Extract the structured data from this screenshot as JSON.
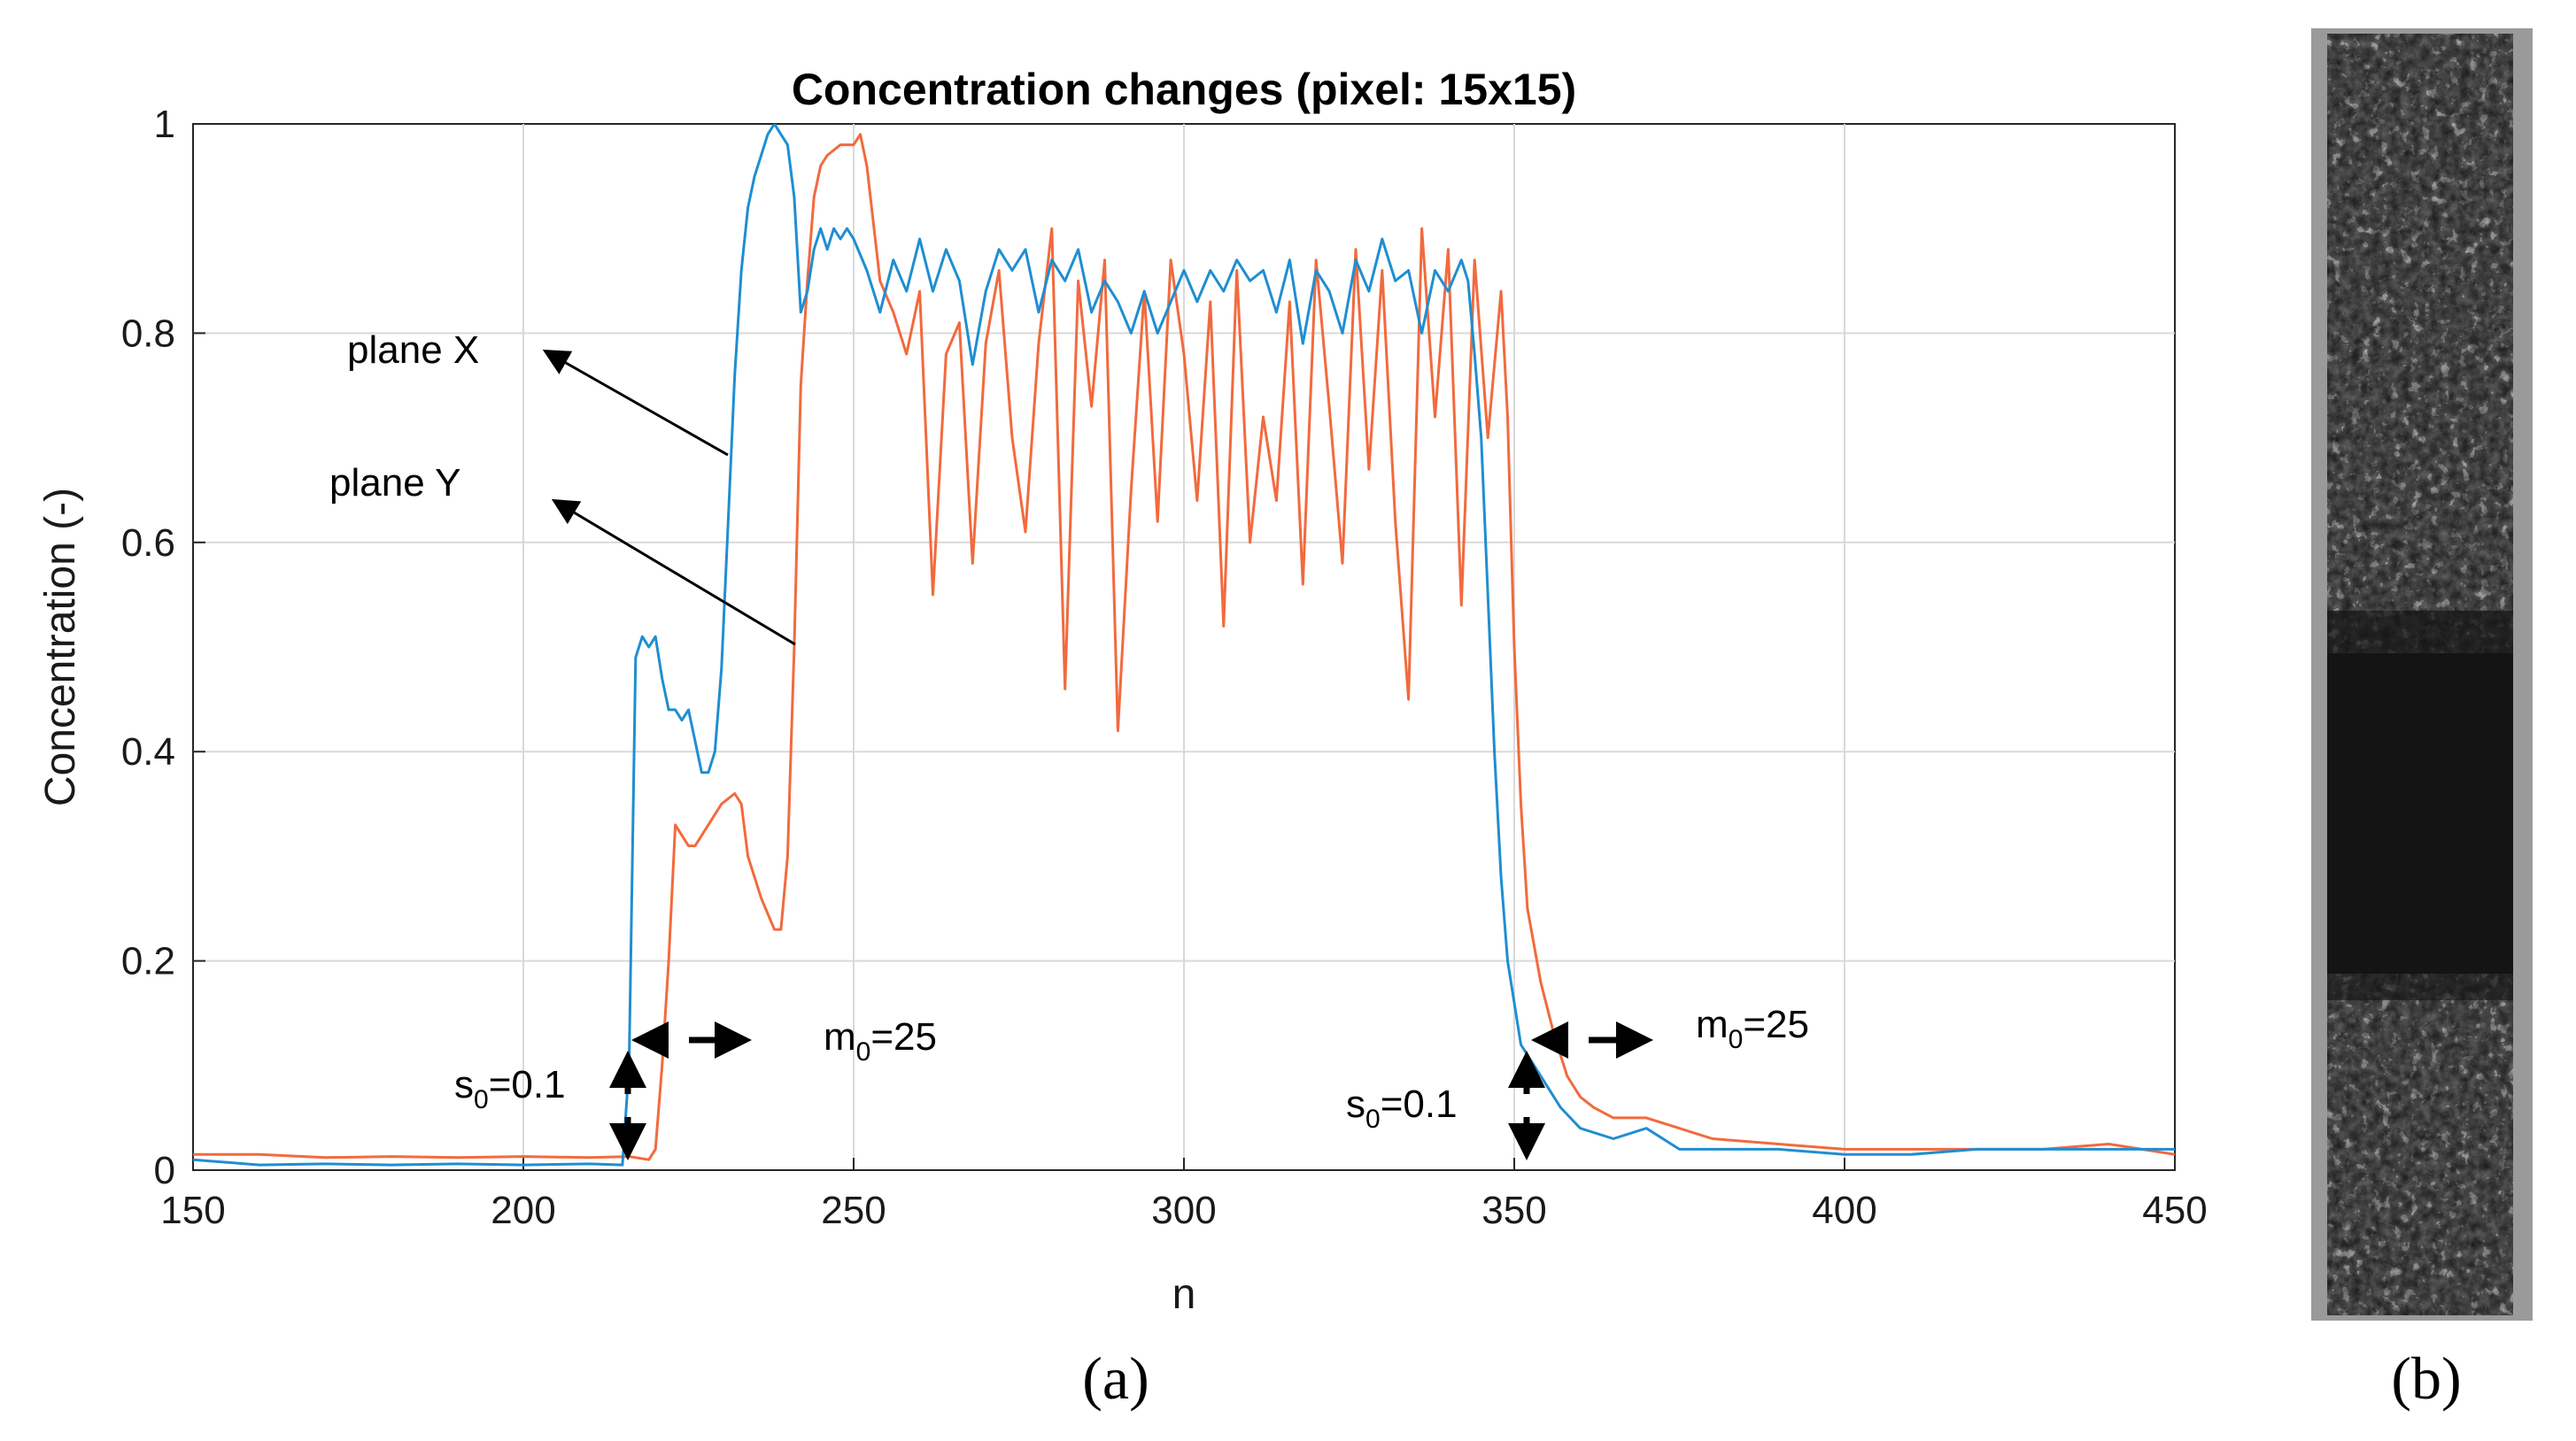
{
  "chart_data": {
    "type": "line",
    "title": "Concentration changes (pixel: 15x15)",
    "xlabel": "n",
    "ylabel": "Concentration (-)",
    "xlim": [
      150,
      450
    ],
    "ylim": [
      0,
      1
    ],
    "xticks": [
      "150",
      "200",
      "250",
      "300",
      "350",
      "400",
      "450"
    ],
    "yticks": [
      "0",
      "0.2",
      "0.4",
      "0.6",
      "0.8",
      "1"
    ],
    "grid": true,
    "colors": {
      "plane_x": "#1f8ed1",
      "plane_y": "#f26a3d",
      "grid": "#d9d9d9",
      "axis": "#262626"
    },
    "series": [
      {
        "name": "plane X",
        "color": "#1f8ed1",
        "points": [
          [
            150,
            0.01
          ],
          [
            160,
            0.005
          ],
          [
            170,
            0.006
          ],
          [
            180,
            0.005
          ],
          [
            190,
            0.006
          ],
          [
            200,
            0.005
          ],
          [
            210,
            0.006
          ],
          [
            215,
            0.005
          ],
          [
            216,
            0.1
          ],
          [
            217,
            0.49
          ],
          [
            218,
            0.51
          ],
          [
            219,
            0.5
          ],
          [
            220,
            0.51
          ],
          [
            221,
            0.47
          ],
          [
            222,
            0.44
          ],
          [
            223,
            0.44
          ],
          [
            224,
            0.43
          ],
          [
            225,
            0.44
          ],
          [
            226,
            0.41
          ],
          [
            227,
            0.38
          ],
          [
            228,
            0.38
          ],
          [
            229,
            0.4
          ],
          [
            230,
            0.48
          ],
          [
            231,
            0.62
          ],
          [
            232,
            0.76
          ],
          [
            233,
            0.86
          ],
          [
            234,
            0.92
          ],
          [
            235,
            0.95
          ],
          [
            236,
            0.97
          ],
          [
            237,
            0.99
          ],
          [
            238,
            1.0
          ],
          [
            239,
            0.99
          ],
          [
            240,
            0.98
          ],
          [
            241,
            0.93
          ],
          [
            242,
            0.82
          ],
          [
            243,
            0.84
          ],
          [
            244,
            0.88
          ],
          [
            245,
            0.9
          ],
          [
            246,
            0.88
          ],
          [
            247,
            0.9
          ],
          [
            248,
            0.89
          ],
          [
            249,
            0.9
          ],
          [
            250,
            0.89
          ],
          [
            252,
            0.86
          ],
          [
            254,
            0.82
          ],
          [
            256,
            0.87
          ],
          [
            258,
            0.84
          ],
          [
            260,
            0.89
          ],
          [
            262,
            0.84
          ],
          [
            264,
            0.88
          ],
          [
            266,
            0.85
          ],
          [
            268,
            0.77
          ],
          [
            270,
            0.84
          ],
          [
            272,
            0.88
          ],
          [
            274,
            0.86
          ],
          [
            276,
            0.88
          ],
          [
            278,
            0.82
          ],
          [
            280,
            0.87
          ],
          [
            282,
            0.85
          ],
          [
            284,
            0.88
          ],
          [
            286,
            0.82
          ],
          [
            288,
            0.85
          ],
          [
            290,
            0.83
          ],
          [
            292,
            0.8
          ],
          [
            294,
            0.84
          ],
          [
            296,
            0.8
          ],
          [
            298,
            0.83
          ],
          [
            300,
            0.86
          ],
          [
            302,
            0.83
          ],
          [
            304,
            0.86
          ],
          [
            306,
            0.84
          ],
          [
            308,
            0.87
          ],
          [
            310,
            0.85
          ],
          [
            312,
            0.86
          ],
          [
            314,
            0.82
          ],
          [
            316,
            0.87
          ],
          [
            318,
            0.79
          ],
          [
            320,
            0.86
          ],
          [
            322,
            0.84
          ],
          [
            324,
            0.8
          ],
          [
            326,
            0.87
          ],
          [
            328,
            0.84
          ],
          [
            330,
            0.89
          ],
          [
            332,
            0.85
          ],
          [
            334,
            0.86
          ],
          [
            336,
            0.8
          ],
          [
            338,
            0.86
          ],
          [
            340,
            0.84
          ],
          [
            342,
            0.87
          ],
          [
            343,
            0.85
          ],
          [
            344,
            0.78
          ],
          [
            345,
            0.7
          ],
          [
            346,
            0.55
          ],
          [
            347,
            0.4
          ],
          [
            348,
            0.28
          ],
          [
            349,
            0.2
          ],
          [
            350,
            0.16
          ],
          [
            351,
            0.12
          ],
          [
            353,
            0.1
          ],
          [
            355,
            0.08
          ],
          [
            357,
            0.06
          ],
          [
            360,
            0.04
          ],
          [
            365,
            0.03
          ],
          [
            370,
            0.04
          ],
          [
            375,
            0.02
          ],
          [
            380,
            0.02
          ],
          [
            390,
            0.02
          ],
          [
            400,
            0.015
          ],
          [
            410,
            0.015
          ],
          [
            420,
            0.02
          ],
          [
            430,
            0.02
          ],
          [
            440,
            0.02
          ],
          [
            450,
            0.02
          ]
        ]
      },
      {
        "name": "plane Y",
        "color": "#f26a3d",
        "points": [
          [
            150,
            0.015
          ],
          [
            160,
            0.015
          ],
          [
            170,
            0.012
          ],
          [
            180,
            0.013
          ],
          [
            190,
            0.012
          ],
          [
            200,
            0.013
          ],
          [
            210,
            0.012
          ],
          [
            216,
            0.013
          ],
          [
            219,
            0.01
          ],
          [
            220,
            0.02
          ],
          [
            221,
            0.1
          ],
          [
            222,
            0.2
          ],
          [
            223,
            0.33
          ],
          [
            224,
            0.32
          ],
          [
            225,
            0.31
          ],
          [
            226,
            0.31
          ],
          [
            228,
            0.33
          ],
          [
            230,
            0.35
          ],
          [
            232,
            0.36
          ],
          [
            233,
            0.35
          ],
          [
            234,
            0.3
          ],
          [
            236,
            0.26
          ],
          [
            238,
            0.23
          ],
          [
            239,
            0.23
          ],
          [
            240,
            0.3
          ],
          [
            241,
            0.5
          ],
          [
            242,
            0.75
          ],
          [
            243,
            0.85
          ],
          [
            244,
            0.93
          ],
          [
            245,
            0.96
          ],
          [
            246,
            0.97
          ],
          [
            248,
            0.98
          ],
          [
            250,
            0.98
          ],
          [
            251,
            0.99
          ],
          [
            252,
            0.96
          ],
          [
            254,
            0.85
          ],
          [
            256,
            0.82
          ],
          [
            258,
            0.78
          ],
          [
            260,
            0.84
          ],
          [
            262,
            0.55
          ],
          [
            264,
            0.78
          ],
          [
            266,
            0.81
          ],
          [
            268,
            0.58
          ],
          [
            270,
            0.79
          ],
          [
            272,
            0.86
          ],
          [
            274,
            0.7
          ],
          [
            276,
            0.61
          ],
          [
            278,
            0.79
          ],
          [
            280,
            0.9
          ],
          [
            282,
            0.46
          ],
          [
            284,
            0.85
          ],
          [
            286,
            0.73
          ],
          [
            288,
            0.87
          ],
          [
            290,
            0.42
          ],
          [
            292,
            0.65
          ],
          [
            294,
            0.84
          ],
          [
            296,
            0.62
          ],
          [
            298,
            0.87
          ],
          [
            300,
            0.78
          ],
          [
            302,
            0.64
          ],
          [
            304,
            0.83
          ],
          [
            306,
            0.52
          ],
          [
            308,
            0.86
          ],
          [
            310,
            0.6
          ],
          [
            312,
            0.72
          ],
          [
            314,
            0.64
          ],
          [
            316,
            0.83
          ],
          [
            318,
            0.56
          ],
          [
            320,
            0.87
          ],
          [
            322,
            0.73
          ],
          [
            324,
            0.58
          ],
          [
            326,
            0.88
          ],
          [
            328,
            0.67
          ],
          [
            330,
            0.86
          ],
          [
            332,
            0.62
          ],
          [
            334,
            0.45
          ],
          [
            336,
            0.9
          ],
          [
            338,
            0.72
          ],
          [
            340,
            0.88
          ],
          [
            342,
            0.54
          ],
          [
            344,
            0.87
          ],
          [
            346,
            0.7
          ],
          [
            348,
            0.84
          ],
          [
            349,
            0.72
          ],
          [
            350,
            0.5
          ],
          [
            351,
            0.35
          ],
          [
            352,
            0.25
          ],
          [
            354,
            0.18
          ],
          [
            356,
            0.13
          ],
          [
            358,
            0.09
          ],
          [
            360,
            0.07
          ],
          [
            362,
            0.06
          ],
          [
            365,
            0.05
          ],
          [
            370,
            0.05
          ],
          [
            375,
            0.04
          ],
          [
            380,
            0.03
          ],
          [
            390,
            0.025
          ],
          [
            400,
            0.02
          ],
          [
            410,
            0.02
          ],
          [
            420,
            0.02
          ],
          [
            430,
            0.02
          ],
          [
            440,
            0.025
          ],
          [
            450,
            0.015
          ]
        ]
      }
    ],
    "annotations": {
      "plane_x_label": "plane X",
      "plane_y_label": "plane Y",
      "left_s0": {
        "text": "s",
        "sub": "0",
        "suffix": "=0.1",
        "n": 216
      },
      "left_m0": {
        "text": "m",
        "sub": "0",
        "suffix": "=25",
        "n": 216
      },
      "right_s0": {
        "text": "s",
        "sub": "0",
        "suffix": "=0.1",
        "n": 351
      },
      "right_m0": {
        "text": "m",
        "sub": "0",
        "suffix": "=25",
        "n": 351
      }
    }
  },
  "panels": {
    "a_label": "(a)",
    "b_label": "(b)",
    "b_description": "grayscale strip image"
  }
}
